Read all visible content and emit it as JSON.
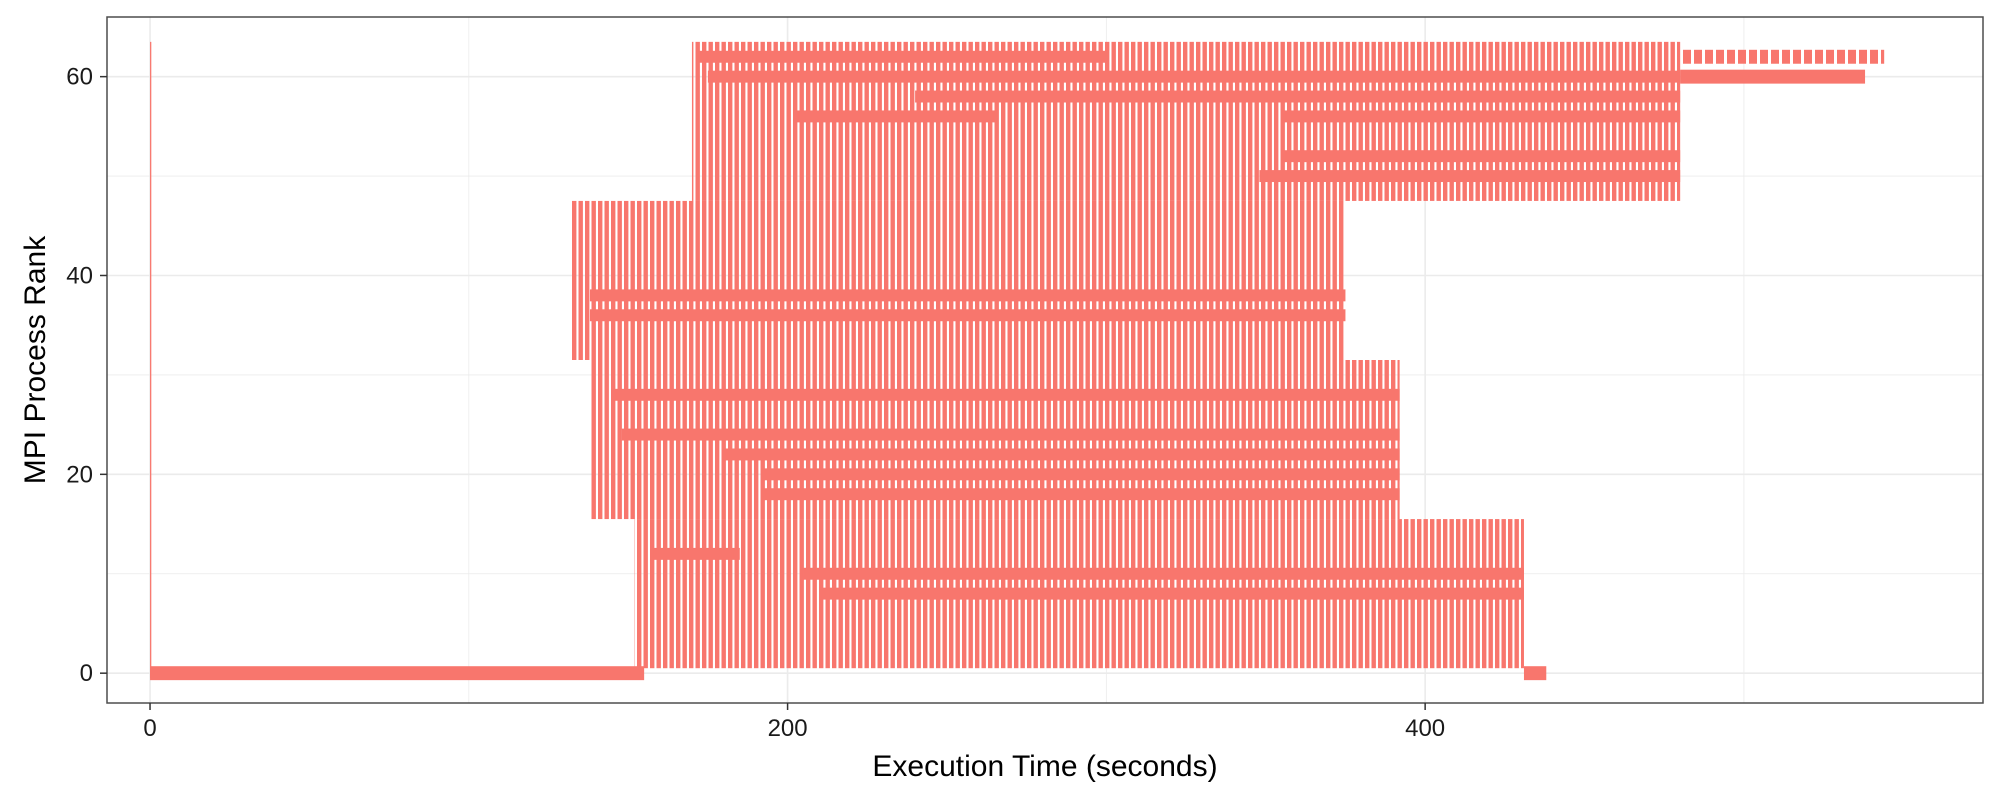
{
  "chart_data": {
    "type": "gantt",
    "xlabel": "Execution Time (seconds)",
    "ylabel": "MPI Process Rank",
    "xlim": [
      -13.5,
      575
    ],
    "ylim": [
      -3,
      66
    ],
    "x_ticks": [
      0,
      200,
      400
    ],
    "y_ticks": [
      0,
      20,
      40,
      60
    ],
    "grid": true,
    "legend": "none",
    "color": "#F8766D",
    "spans": [
      {
        "ranks": [
          1,
          15
        ],
        "start": 152,
        "end": 431,
        "texture": "dense-vertical"
      },
      {
        "ranks": [
          16,
          31
        ],
        "start": 138,
        "end": 392,
        "texture": "dense-vertical"
      },
      {
        "ranks": [
          32,
          47
        ],
        "start": 132,
        "end": 375,
        "texture": "dense-vertical"
      },
      {
        "ranks": [
          48,
          63
        ],
        "start": 170,
        "end": 480,
        "texture": "dense-vertical"
      },
      {
        "ranks": [
          0,
          0
        ],
        "start": 0,
        "end": 155,
        "texture": "solid"
      },
      {
        "ranks": [
          0,
          0
        ],
        "start": 431,
        "end": 438,
        "texture": "solid"
      },
      {
        "ranks": [
          62,
          62
        ],
        "start": 480,
        "end": 544,
        "texture": "dashed"
      },
      {
        "ranks": [
          60,
          60
        ],
        "start": 480,
        "end": 538,
        "texture": "solid"
      },
      {
        "ranks": [
          0,
          63
        ],
        "start": 0,
        "end": 0.4,
        "texture": "solid"
      }
    ],
    "solid_rows": [
      {
        "rank": 8,
        "start": 210,
        "end": 431
      },
      {
        "rank": 10,
        "start": 205,
        "end": 431
      },
      {
        "rank": 12,
        "start": 158,
        "end": 185
      },
      {
        "rank": 18,
        "start": 192,
        "end": 392
      },
      {
        "rank": 20,
        "start": 192,
        "end": 392
      },
      {
        "rank": 22,
        "start": 180,
        "end": 392
      },
      {
        "rank": 24,
        "start": 148,
        "end": 392
      },
      {
        "rank": 28,
        "start": 145,
        "end": 392
      },
      {
        "rank": 36,
        "start": 138,
        "end": 375
      },
      {
        "rank": 38,
        "start": 138,
        "end": 375
      },
      {
        "rank": 50,
        "start": 348,
        "end": 480
      },
      {
        "rank": 52,
        "start": 355,
        "end": 480
      },
      {
        "rank": 56,
        "start": 202,
        "end": 265
      },
      {
        "rank": 56,
        "start": 355,
        "end": 480
      },
      {
        "rank": 58,
        "start": 240,
        "end": 480
      },
      {
        "rank": 60,
        "start": 175,
        "end": 480
      },
      {
        "rank": 62,
        "start": 172,
        "end": 300
      }
    ]
  }
}
